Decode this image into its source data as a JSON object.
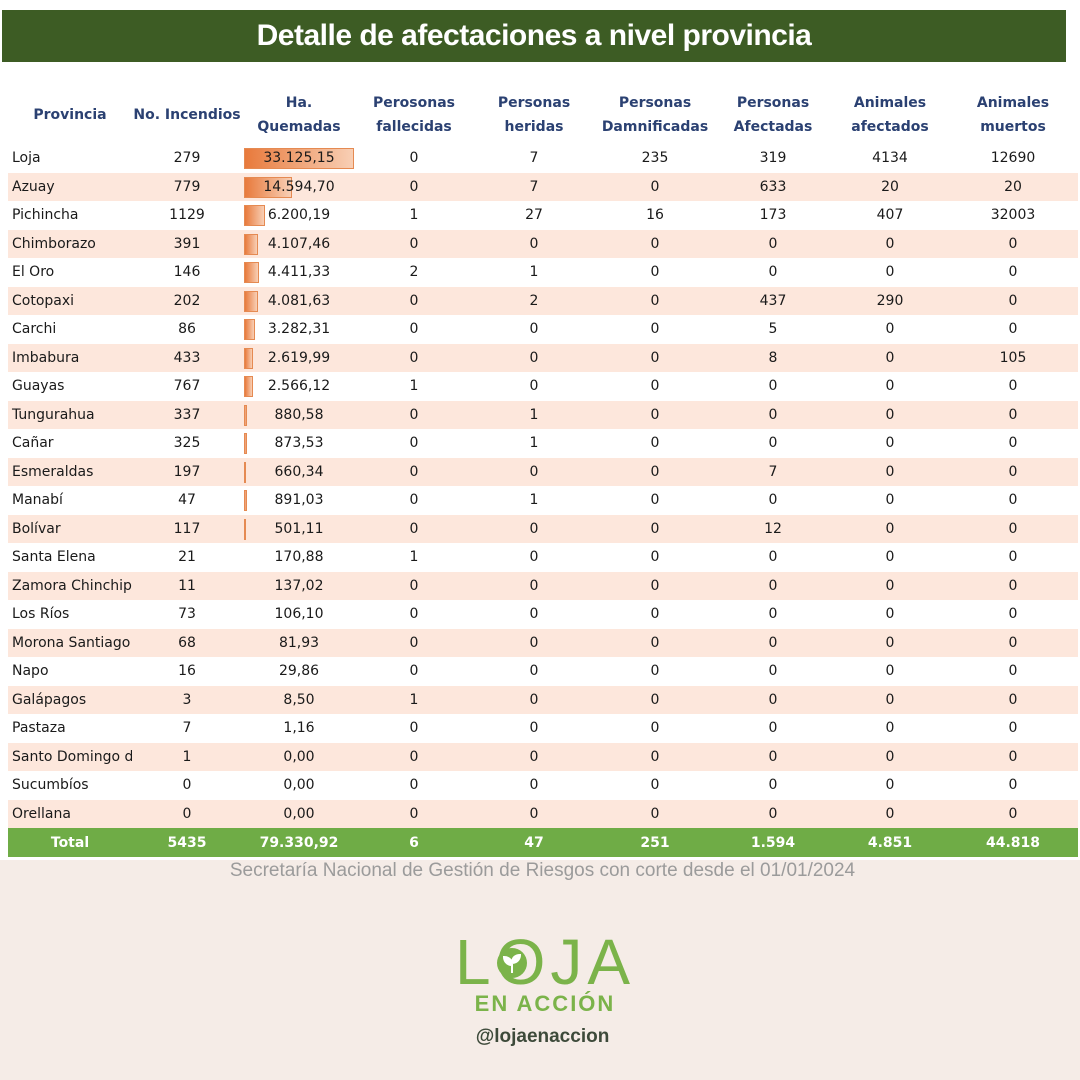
{
  "title": "Detalle de afectaciones a nivel provincia",
  "columns": {
    "provincia": "Provincia",
    "incendios": "No. Incendios",
    "hectareas": "Ha. Quemadas",
    "fallecidas": [
      "Perosonas",
      "fallecidas"
    ],
    "heridas": [
      "Personas",
      "heridas"
    ],
    "damnificadas": [
      "Personas",
      "Damnificadas"
    ],
    "afectadas": [
      "Personas",
      "Afectadas"
    ],
    "animales_afectados": [
      "Animales",
      "afectados"
    ],
    "animales_muertos": [
      "Animales",
      "muertos"
    ]
  },
  "rows": [
    {
      "provincia": "Loja",
      "incendios": "279",
      "hectareas": "33.125,15",
      "ha_num": 33125.15,
      "fallecidas": "0",
      "heridas": "7",
      "damnificadas": "235",
      "afectadas": "319",
      "animales_afectados": "4134",
      "animales_muertos": "12690"
    },
    {
      "provincia": "Azuay",
      "incendios": "779",
      "hectareas": "14.594,70",
      "ha_num": 14594.7,
      "fallecidas": "0",
      "heridas": "7",
      "damnificadas": "0",
      "afectadas": "633",
      "animales_afectados": "20",
      "animales_muertos": "20"
    },
    {
      "provincia": "Pichincha",
      "incendios": "1129",
      "hectareas": "6.200,19",
      "ha_num": 6200.19,
      "fallecidas": "1",
      "heridas": "27",
      "damnificadas": "16",
      "afectadas": "173",
      "animales_afectados": "407",
      "animales_muertos": "32003"
    },
    {
      "provincia": "Chimborazo",
      "incendios": "391",
      "hectareas": "4.107,46",
      "ha_num": 4107.46,
      "fallecidas": "0",
      "heridas": "0",
      "damnificadas": "0",
      "afectadas": "0",
      "animales_afectados": "0",
      "animales_muertos": "0"
    },
    {
      "provincia": "El Oro",
      "incendios": "146",
      "hectareas": "4.411,33",
      "ha_num": 4411.33,
      "fallecidas": "2",
      "heridas": "1",
      "damnificadas": "0",
      "afectadas": "0",
      "animales_afectados": "0",
      "animales_muertos": "0"
    },
    {
      "provincia": "Cotopaxi",
      "incendios": "202",
      "hectareas": "4.081,63",
      "ha_num": 4081.63,
      "fallecidas": "0",
      "heridas": "2",
      "damnificadas": "0",
      "afectadas": "437",
      "animales_afectados": "290",
      "animales_muertos": "0"
    },
    {
      "provincia": "Carchi",
      "incendios": "86",
      "hectareas": "3.282,31",
      "ha_num": 3282.31,
      "fallecidas": "0",
      "heridas": "0",
      "damnificadas": "0",
      "afectadas": "5",
      "animales_afectados": "0",
      "animales_muertos": "0"
    },
    {
      "provincia": "Imbabura",
      "incendios": "433",
      "hectareas": "2.619,99",
      "ha_num": 2619.99,
      "fallecidas": "0",
      "heridas": "0",
      "damnificadas": "0",
      "afectadas": "8",
      "animales_afectados": "0",
      "animales_muertos": "105"
    },
    {
      "provincia": "Guayas",
      "incendios": "767",
      "hectareas": "2.566,12",
      "ha_num": 2566.12,
      "fallecidas": "1",
      "heridas": "0",
      "damnificadas": "0",
      "afectadas": "0",
      "animales_afectados": "0",
      "animales_muertos": "0"
    },
    {
      "provincia": "Tungurahua",
      "incendios": "337",
      "hectareas": "880,58",
      "ha_num": 880.58,
      "fallecidas": "0",
      "heridas": "1",
      "damnificadas": "0",
      "afectadas": "0",
      "animales_afectados": "0",
      "animales_muertos": "0"
    },
    {
      "provincia": "Cañar",
      "incendios": "325",
      "hectareas": "873,53",
      "ha_num": 873.53,
      "fallecidas": "0",
      "heridas": "1",
      "damnificadas": "0",
      "afectadas": "0",
      "animales_afectados": "0",
      "animales_muertos": "0"
    },
    {
      "provincia": "Esmeraldas",
      "incendios": "197",
      "hectareas": "660,34",
      "ha_num": 660.34,
      "fallecidas": "0",
      "heridas": "0",
      "damnificadas": "0",
      "afectadas": "7",
      "animales_afectados": "0",
      "animales_muertos": "0"
    },
    {
      "provincia": "Manabí",
      "incendios": "47",
      "hectareas": "891,03",
      "ha_num": 891.03,
      "fallecidas": "0",
      "heridas": "1",
      "damnificadas": "0",
      "afectadas": "0",
      "animales_afectados": "0",
      "animales_muertos": "0"
    },
    {
      "provincia": "Bolívar",
      "incendios": "117",
      "hectareas": "501,11",
      "ha_num": 501.11,
      "fallecidas": "0",
      "heridas": "0",
      "damnificadas": "0",
      "afectadas": "12",
      "animales_afectados": "0",
      "animales_muertos": "0"
    },
    {
      "provincia": "Santa Elena",
      "incendios": "21",
      "hectareas": "170,88",
      "ha_num": 170.88,
      "fallecidas": "1",
      "heridas": "0",
      "damnificadas": "0",
      "afectadas": "0",
      "animales_afectados": "0",
      "animales_muertos": "0"
    },
    {
      "provincia": "Zamora Chinchipe",
      "incendios": "11",
      "hectareas": "137,02",
      "ha_num": 137.02,
      "fallecidas": "0",
      "heridas": "0",
      "damnificadas": "0",
      "afectadas": "0",
      "animales_afectados": "0",
      "animales_muertos": "0"
    },
    {
      "provincia": "Los Ríos",
      "incendios": "73",
      "hectareas": "106,10",
      "ha_num": 106.1,
      "fallecidas": "0",
      "heridas": "0",
      "damnificadas": "0",
      "afectadas": "0",
      "animales_afectados": "0",
      "animales_muertos": "0"
    },
    {
      "provincia": "Morona Santiago",
      "incendios": "68",
      "hectareas": "81,93",
      "ha_num": 81.93,
      "fallecidas": "0",
      "heridas": "0",
      "damnificadas": "0",
      "afectadas": "0",
      "animales_afectados": "0",
      "animales_muertos": "0"
    },
    {
      "provincia": "Napo",
      "incendios": "16",
      "hectareas": "29,86",
      "ha_num": 29.86,
      "fallecidas": "0",
      "heridas": "0",
      "damnificadas": "0",
      "afectadas": "0",
      "animales_afectados": "0",
      "animales_muertos": "0"
    },
    {
      "provincia": "Galápagos",
      "incendios": "3",
      "hectareas": "8,50",
      "ha_num": 8.5,
      "fallecidas": "1",
      "heridas": "0",
      "damnificadas": "0",
      "afectadas": "0",
      "animales_afectados": "0",
      "animales_muertos": "0"
    },
    {
      "provincia": "Pastaza",
      "incendios": "7",
      "hectareas": "1,16",
      "ha_num": 1.16,
      "fallecidas": "0",
      "heridas": "0",
      "damnificadas": "0",
      "afectadas": "0",
      "animales_afectados": "0",
      "animales_muertos": "0"
    },
    {
      "provincia": "Santo Domingo de",
      "incendios": "1",
      "hectareas": "0,00",
      "ha_num": 0,
      "fallecidas": "0",
      "heridas": "0",
      "damnificadas": "0",
      "afectadas": "0",
      "animales_afectados": "0",
      "animales_muertos": "0"
    },
    {
      "provincia": "Sucumbíos",
      "incendios": "0",
      "hectareas": "0,00",
      "ha_num": 0,
      "fallecidas": "0",
      "heridas": "0",
      "damnificadas": "0",
      "afectadas": "0",
      "animales_afectados": "0",
      "animales_muertos": "0"
    },
    {
      "provincia": "Orellana",
      "incendios": "0",
      "hectareas": "0,00",
      "ha_num": 0,
      "fallecidas": "0",
      "heridas": "0",
      "damnificadas": "0",
      "afectadas": "0",
      "animales_afectados": "0",
      "animales_muertos": "0"
    }
  ],
  "total": {
    "provincia": "Total",
    "incendios": "5435",
    "hectareas": "79.330,92",
    "fallecidas": "6",
    "heridas": "47",
    "damnificadas": "251",
    "afectadas": "1.594",
    "animales_afectados": "4.851",
    "animales_muertos": "44.818"
  },
  "bar_max": 33125.15,
  "source": "Secretaría Nacional de Gestión de Riesgos con corte desde el 01/01/2024",
  "logo": {
    "word": "LOJA",
    "sub": "EN ACCIÓN"
  },
  "handle": "@lojaenaccion",
  "colors": {
    "banner": "#3d5c24",
    "header_text": "#2b4172",
    "row_alt": "#fde7dc",
    "total_bg": "#6fac46",
    "bar": "#e87a3c",
    "logo": "#7bb34a"
  }
}
